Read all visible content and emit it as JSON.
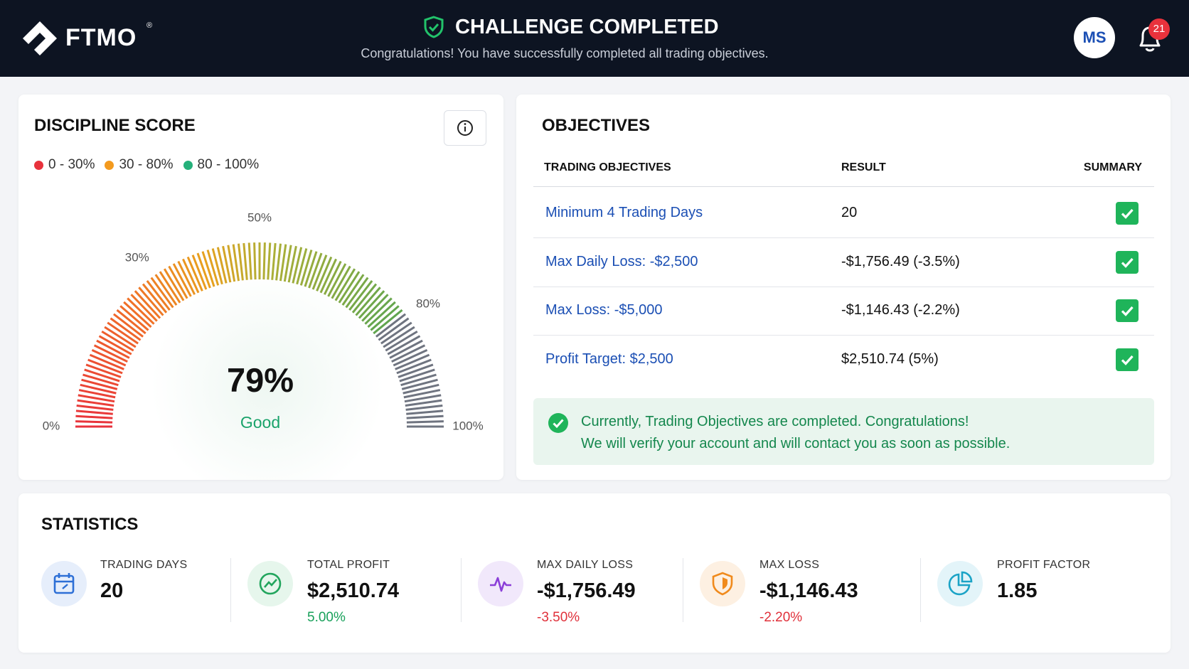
{
  "header": {
    "logo": "FTMO",
    "logo_mark": "®",
    "title": "CHALLENGE COMPLETED",
    "subtitle": "Congratulations! You have successfully completed all trading objectives.",
    "avatar": "MS",
    "notifications": "21"
  },
  "discipline": {
    "title": "DISCIPLINE SCORE",
    "legend": [
      {
        "label": "0 - 30%",
        "color": "#e8323c"
      },
      {
        "label": "30 - 80%",
        "color": "#f39a1e"
      },
      {
        "label": "80 - 100%",
        "color": "#25b07a"
      }
    ],
    "gauge": {
      "score": {
        "value": 79,
        "label": "79%"
      },
      "rating": "Good",
      "ticks": [
        {
          "value": 0,
          "label": "0%"
        },
        {
          "value": 30,
          "label": "30%"
        },
        {
          "value": 50,
          "label": "50%"
        },
        {
          "value": 80,
          "label": "80%"
        },
        {
          "value": 100,
          "label": "100%"
        }
      ]
    }
  },
  "objectives": {
    "title": "OBJECTIVES",
    "columns": [
      "TRADING OBJECTIVES",
      "RESULT",
      "SUMMARY"
    ],
    "rows": [
      [
        "Minimum 4 Trading Days",
        "20"
      ],
      [
        "Max Daily Loss: -$2,500",
        "-$1,756.49 (-3.5%)"
      ],
      [
        "Max Loss: -$5,000",
        "-$1,146.43 (-2.2%)"
      ],
      [
        "Profit Target: $2,500",
        "$2,510.74 (5%)"
      ]
    ],
    "notice": [
      "Currently, Trading Objectives are completed. Congratulations!",
      "We will verify your account and will contact you as soon as possible."
    ]
  },
  "statistics": {
    "title": "STATISTICS",
    "items": [
      {
        "label": "TRADING DAYS",
        "value": "20"
      },
      {
        "label": "TOTAL PROFIT",
        "value": "$2,510.74",
        "change": "5.00%"
      },
      {
        "label": "MAX DAILY LOSS",
        "value": "-$1,756.49",
        "change": "-3.50%"
      },
      {
        "label": "MAX LOSS",
        "value": "-$1,146.43",
        "change": "-2.20%"
      },
      {
        "label": "PROFIT FACTOR",
        "value": "1.85"
      }
    ]
  }
}
